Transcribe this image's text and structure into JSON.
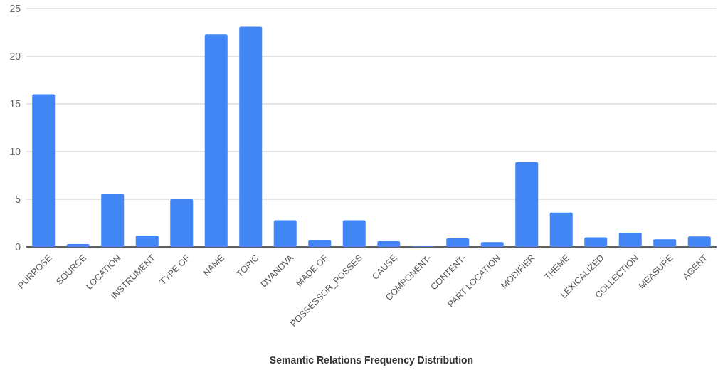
{
  "chart_data": {
    "type": "bar",
    "xlabel": "Semantic Relations Frequency Distribution",
    "categories": [
      "PURPOSE",
      "SOURCE",
      "LOCATION",
      "INSTRUMENT",
      "TYPE OF",
      "NAME",
      "TOPIC",
      "DVANDVA",
      "MADE OF",
      "POSSESSOR_POSSES",
      "CAUSE",
      "COMPONENT-",
      "CONTENT-",
      "PART LOCATION",
      "MODIFIER",
      "THEME",
      "LEXICALIZED",
      "COLLECTION",
      "MEASURE",
      "AGENT"
    ],
    "values": [
      16.0,
      0.3,
      5.6,
      1.2,
      5.0,
      22.3,
      23.1,
      2.8,
      0.7,
      2.8,
      0.6,
      0.05,
      0.9,
      0.5,
      8.9,
      3.6,
      1.0,
      1.5,
      0.8,
      1.1
    ],
    "color": "#4285f4",
    "ylim": [
      0,
      25
    ],
    "yticks": [
      0,
      5,
      10,
      15,
      20,
      25
    ],
    "grid": "y"
  }
}
